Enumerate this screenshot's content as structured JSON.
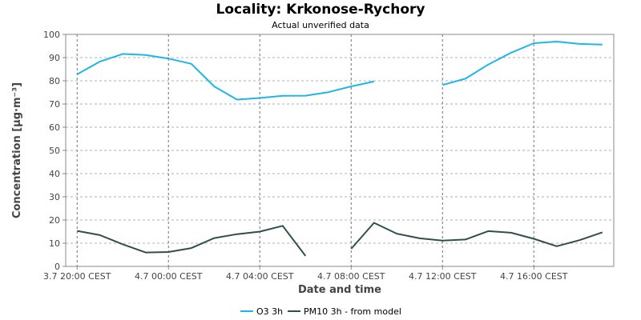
{
  "chart_data": {
    "type": "line",
    "title": "Locality: Krkonose-Rychory",
    "subtitle": "Actual unverified data",
    "xlabel": "Date and time",
    "ylabel": "Concentration [µg·m⁻³]",
    "ylim": [
      0,
      100
    ],
    "yticks": [
      0,
      10,
      20,
      30,
      40,
      50,
      60,
      70,
      80,
      90,
      100
    ],
    "xlim": [
      19.5,
      43.5
    ],
    "xticks": [
      {
        "x": 20,
        "label": "3.7 20:00 CEST"
      },
      {
        "x": 24,
        "label": "4.7 00:00 CEST"
      },
      {
        "x": 28,
        "label": "4.7 04:00 CEST"
      },
      {
        "x": 32,
        "label": "4.7 08:00 CEST"
      },
      {
        "x": 36,
        "label": "4.7 12:00 CEST"
      },
      {
        "x": 40,
        "label": "4.7 16:00 CEST"
      }
    ],
    "grid": true,
    "legend_position": "bottom",
    "series": [
      {
        "name": "O3 3h",
        "color": "#1fb5e9",
        "points": [
          [
            20,
            82.8
          ],
          [
            21,
            88.3
          ],
          [
            22,
            91.6
          ],
          [
            23,
            91.1
          ],
          [
            24,
            89.6
          ],
          [
            25,
            87.3
          ],
          [
            26,
            77.6
          ],
          [
            27,
            71.9
          ],
          [
            28,
            72.6
          ],
          [
            29,
            73.5
          ],
          [
            30,
            73.6
          ],
          [
            31,
            75.1
          ],
          [
            32,
            77.6
          ],
          [
            33,
            79.7
          ],
          [
            34,
            null
          ],
          [
            35,
            null
          ],
          [
            36,
            78.2
          ],
          [
            37,
            80.9
          ],
          [
            38,
            87.0
          ],
          [
            39,
            92.1
          ],
          [
            40,
            96.2
          ],
          [
            41,
            96.9
          ],
          [
            42,
            95.9
          ],
          [
            43,
            95.6
          ]
        ]
      },
      {
        "name": "PM10 3h - from model",
        "color": "#2f4f4f",
        "points": [
          [
            20,
            15.3
          ],
          [
            21,
            13.5
          ],
          [
            22,
            9.5
          ],
          [
            23,
            6.0
          ],
          [
            24,
            6.2
          ],
          [
            25,
            7.9
          ],
          [
            26,
            12.2
          ],
          [
            27,
            13.9
          ],
          [
            28,
            15.0
          ],
          [
            29,
            17.5
          ],
          [
            30,
            4.5
          ],
          [
            31,
            null
          ],
          [
            32,
            7.6
          ],
          [
            33,
            18.8
          ],
          [
            34,
            14.1
          ],
          [
            35,
            12.1
          ],
          [
            36,
            11.1
          ],
          [
            37,
            11.6
          ],
          [
            38,
            15.2
          ],
          [
            39,
            14.5
          ],
          [
            40,
            11.9
          ],
          [
            41,
            8.7
          ],
          [
            42,
            11.3
          ],
          [
            43,
            14.7
          ]
        ]
      }
    ]
  }
}
